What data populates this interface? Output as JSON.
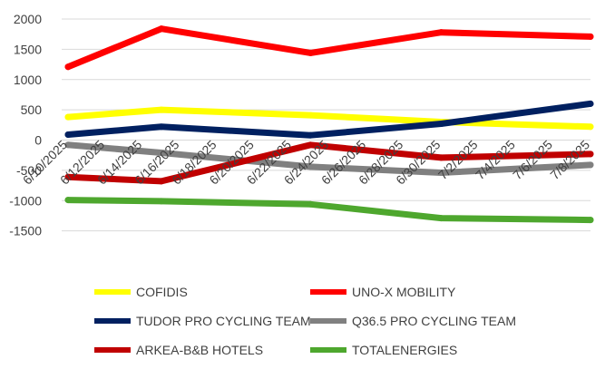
{
  "chart_data": {
    "type": "line",
    "title": "",
    "xlabel": "",
    "ylabel": "",
    "ylim": [
      -2000,
      2000
    ],
    "yticks": [
      2000,
      1500,
      1000,
      500,
      0,
      -500,
      -1000,
      -1500
    ],
    "ytick_labels": [
      "2000",
      "1500",
      "1000",
      "500",
      "0",
      "-500",
      "-1000",
      "-1500"
    ],
    "x_tick_labels": [
      "6/10/2025",
      "6/12/2025",
      "6/14/2025",
      "6/16/2025",
      "6/18/2025",
      "6/20/2025",
      "6/22/2025",
      "6/24/2025",
      "6/26/2025",
      "6/28/2025",
      "6/30/2025",
      "7/2/2025",
      "7/4/2025",
      "7/6/2025",
      "7/8/2025"
    ],
    "x": [
      "6/10/2025",
      "6/15/2025",
      "6/23/2025",
      "6/30/2025",
      "7/8/2025"
    ],
    "grid": "horizontal",
    "legend_position": "bottom",
    "series": [
      {
        "name": "COFIDIS",
        "color": "#ffff00",
        "values": [
          380,
          500,
          410,
          300,
          220
        ]
      },
      {
        "name": "UNO-X MOBILITY",
        "color": "#ff0000",
        "values": [
          1210,
          1840,
          1440,
          1780,
          1710
        ]
      },
      {
        "name": "TUDOR PRO CYCLING TEAM",
        "color": "#002060",
        "values": [
          90,
          220,
          80,
          270,
          600
        ]
      },
      {
        "name": "Q36.5 PRO CYCLING TEAM",
        "color": "#808080",
        "values": [
          -80,
          -210,
          -440,
          -540,
          -410
        ]
      },
      {
        "name": "ARKEA-B&B HOTELS",
        "color": "#c00000",
        "values": [
          -610,
          -680,
          -80,
          -290,
          -230
        ]
      },
      {
        "name": "TOTALENERGIES",
        "color": "#4ea72e",
        "values": [
          -990,
          -1010,
          -1060,
          -1290,
          -1320
        ]
      }
    ]
  }
}
